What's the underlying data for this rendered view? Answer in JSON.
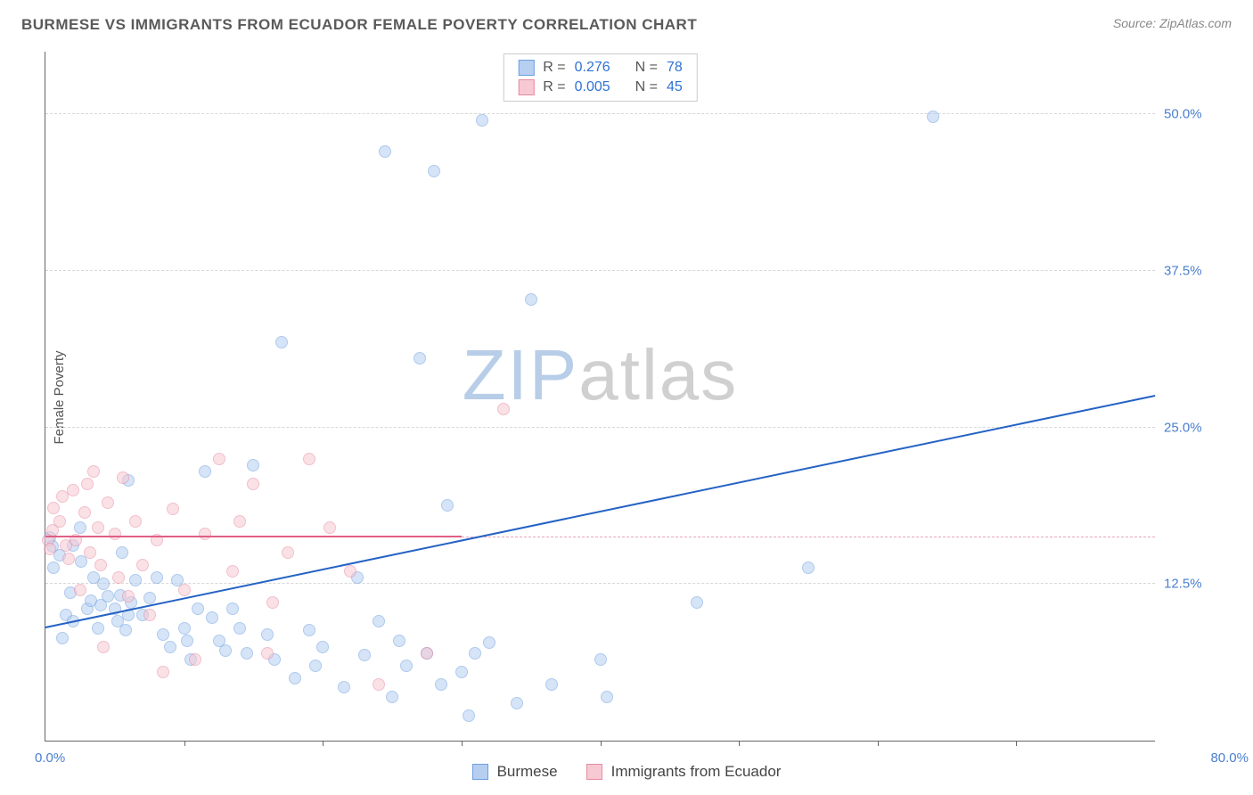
{
  "header": {
    "title": "BURMESE VS IMMIGRANTS FROM ECUADOR FEMALE POVERTY CORRELATION CHART",
    "source_prefix": "Source: ",
    "source_name": "ZipAtlas.com"
  },
  "watermark": {
    "text_a": "ZIP",
    "text_b": "atlas",
    "color_a": "#b8cde8",
    "color_b": "#d0d0d0"
  },
  "chart": {
    "type": "scatter",
    "ylabel": "Female Poverty",
    "xlim": [
      0,
      80
    ],
    "ylim": [
      0,
      55
    ],
    "x_min_label": "0.0%",
    "x_max_label": "80.0%",
    "x_tick_step": 10,
    "y_gridlines": [
      12.5,
      25.0,
      37.5,
      50.0
    ],
    "y_tick_labels": [
      "12.5%",
      "25.0%",
      "37.5%",
      "50.0%"
    ],
    "y_tick_color": "#4a7fcf",
    "x_label_color": "#4a7fcf",
    "grid_color": "#d8d8d8",
    "background_color": "#ffffff",
    "marker_radius": 7,
    "series": [
      {
        "name": "Burmese",
        "color_fill": "#b6cff1",
        "color_stroke": "#6f9fe0",
        "R": "0.276",
        "N": "78",
        "trend": {
          "x1": 0,
          "y1": 9.0,
          "x2": 80,
          "y2": 27.5,
          "color": "#2462c4",
          "width": 2
        },
        "points": [
          [
            0.3,
            16.2
          ],
          [
            0.5,
            15.5
          ],
          [
            0.6,
            13.8
          ],
          [
            1.0,
            14.8
          ],
          [
            1.2,
            8.2
          ],
          [
            1.5,
            10.0
          ],
          [
            1.8,
            11.8
          ],
          [
            2.0,
            15.6
          ],
          [
            2.0,
            9.5
          ],
          [
            2.5,
            17.0
          ],
          [
            2.6,
            14.3
          ],
          [
            3.0,
            10.5
          ],
          [
            3.3,
            11.2
          ],
          [
            3.5,
            13.0
          ],
          [
            3.8,
            9.0
          ],
          [
            4.0,
            10.8
          ],
          [
            4.2,
            12.5
          ],
          [
            4.5,
            11.5
          ],
          [
            5.0,
            10.5
          ],
          [
            5.2,
            9.5
          ],
          [
            5.4,
            11.6
          ],
          [
            5.8,
            8.8
          ],
          [
            6.0,
            10.0
          ],
          [
            6.0,
            20.8
          ],
          [
            6.2,
            11.0
          ],
          [
            6.5,
            12.8
          ],
          [
            7.0,
            10.0
          ],
          [
            7.5,
            11.4
          ],
          [
            8.0,
            13.0
          ],
          [
            8.5,
            8.5
          ],
          [
            9.0,
            7.5
          ],
          [
            9.5,
            12.8
          ],
          [
            10.0,
            9.0
          ],
          [
            10.2,
            8.0
          ],
          [
            10.5,
            6.5
          ],
          [
            11.0,
            10.5
          ],
          [
            11.5,
            21.5
          ],
          [
            12.0,
            9.8
          ],
          [
            12.5,
            8.0
          ],
          [
            13.0,
            7.2
          ],
          [
            13.5,
            10.5
          ],
          [
            14.0,
            9.0
          ],
          [
            14.5,
            7.0
          ],
          [
            15.0,
            22.0
          ],
          [
            16.0,
            8.5
          ],
          [
            16.5,
            6.5
          ],
          [
            17.0,
            31.8
          ],
          [
            18.0,
            5.0
          ],
          [
            19.0,
            8.8
          ],
          [
            19.5,
            6.0
          ],
          [
            20.0,
            7.5
          ],
          [
            21.5,
            4.3
          ],
          [
            22.5,
            13.0
          ],
          [
            23.0,
            6.8
          ],
          [
            24.0,
            9.5
          ],
          [
            24.5,
            47.0
          ],
          [
            25.0,
            3.5
          ],
          [
            25.5,
            8.0
          ],
          [
            26.0,
            6.0
          ],
          [
            27.0,
            30.5
          ],
          [
            27.5,
            7.0
          ],
          [
            28.0,
            45.5
          ],
          [
            28.5,
            4.5
          ],
          [
            29.0,
            18.8
          ],
          [
            30.0,
            5.5
          ],
          [
            30.5,
            2.0
          ],
          [
            31.0,
            7.0
          ],
          [
            31.5,
            49.5
          ],
          [
            32.0,
            7.8
          ],
          [
            34.0,
            3.0
          ],
          [
            36.5,
            4.5
          ],
          [
            40.0,
            6.5
          ],
          [
            40.5,
            3.5
          ],
          [
            47.0,
            11.0
          ],
          [
            55.0,
            13.8
          ],
          [
            64.0,
            49.8
          ],
          [
            5.5,
            15.0
          ],
          [
            35.0,
            35.2
          ]
        ]
      },
      {
        "name": "Immigrants from Ecuador",
        "color_fill": "#f6c9d3",
        "color_stroke": "#e88ba3",
        "R": "0.005",
        "N": "45",
        "trend": {
          "x1": 0,
          "y1": 16.2,
          "x2": 30,
          "y2": 16.2,
          "color": "#e05f85",
          "width": 2
        },
        "trend_dash": {
          "x1": 30,
          "y1": 16.2,
          "x2": 80,
          "y2": 16.2,
          "color": "#e9a5b8"
        },
        "points": [
          [
            0.2,
            16.0
          ],
          [
            0.3,
            15.3
          ],
          [
            0.5,
            16.8
          ],
          [
            0.6,
            18.6
          ],
          [
            1.0,
            17.5
          ],
          [
            1.2,
            19.5
          ],
          [
            1.5,
            15.6
          ],
          [
            1.7,
            14.5
          ],
          [
            2.0,
            20.0
          ],
          [
            2.2,
            16.0
          ],
          [
            2.5,
            12.0
          ],
          [
            2.8,
            18.2
          ],
          [
            3.0,
            20.5
          ],
          [
            3.2,
            15.0
          ],
          [
            3.5,
            21.5
          ],
          [
            3.8,
            17.0
          ],
          [
            4.0,
            14.0
          ],
          [
            4.2,
            7.5
          ],
          [
            4.5,
            19.0
          ],
          [
            5.0,
            16.5
          ],
          [
            5.3,
            13.0
          ],
          [
            5.6,
            21.0
          ],
          [
            6.0,
            11.5
          ],
          [
            6.5,
            17.5
          ],
          [
            7.0,
            14.0
          ],
          [
            7.5,
            10.0
          ],
          [
            8.0,
            16.0
          ],
          [
            8.5,
            5.5
          ],
          [
            9.2,
            18.5
          ],
          [
            10.0,
            12.0
          ],
          [
            10.8,
            6.5
          ],
          [
            11.5,
            16.5
          ],
          [
            12.5,
            22.5
          ],
          [
            13.5,
            13.5
          ],
          [
            14.0,
            17.5
          ],
          [
            15.0,
            20.5
          ],
          [
            16.4,
            11.0
          ],
          [
            17.5,
            15.0
          ],
          [
            19.0,
            22.5
          ],
          [
            20.5,
            17.0
          ],
          [
            22.0,
            13.5
          ],
          [
            24.0,
            4.5
          ],
          [
            27.5,
            7.0
          ],
          [
            33.0,
            26.5
          ],
          [
            16.0,
            7.0
          ]
        ]
      }
    ],
    "stats_box": {
      "r_label": "R  =",
      "n_label": "N  =",
      "value_color": "#2f72d6",
      "text_color": "#555555"
    }
  },
  "bottom_legend": {
    "items": [
      {
        "label": "Burmese",
        "fill": "#b6cff1",
        "stroke": "#6f9fe0"
      },
      {
        "label": "Immigrants from Ecuador",
        "fill": "#f6c9d3",
        "stroke": "#e88ba3"
      }
    ]
  }
}
